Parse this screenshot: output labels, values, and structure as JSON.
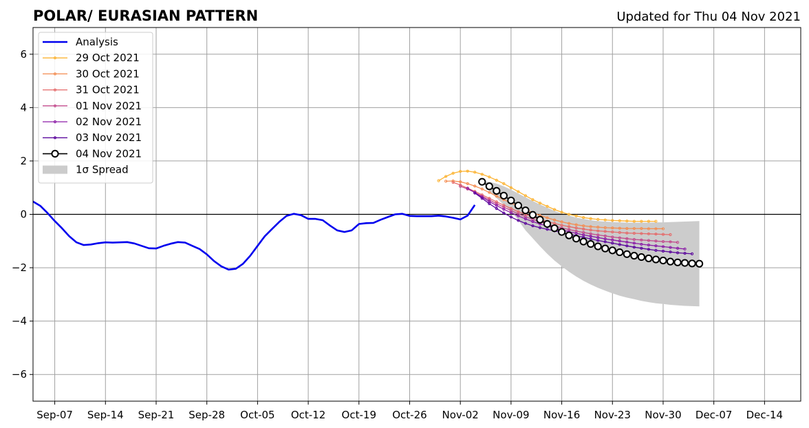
{
  "title_left": "POLAR/ EURASIAN  PATTERN",
  "title_right": "Updated for Thu 04 Nov 2021",
  "chart_data": {
    "type": "line",
    "title": "POLAR/ EURASIAN  PATTERN",
    "xlabel": "",
    "ylabel": "",
    "x_axis": {
      "start": "2021-09-04",
      "end": "2021-12-19",
      "tick_dates": [
        "2021-09-07",
        "2021-09-14",
        "2021-09-21",
        "2021-09-28",
        "2021-10-05",
        "2021-10-12",
        "2021-10-19",
        "2021-10-26",
        "2021-11-02",
        "2021-11-09",
        "2021-11-16",
        "2021-11-23",
        "2021-11-30",
        "2021-12-07",
        "2021-12-14"
      ],
      "tick_labels": [
        "Sep-07",
        "Sep-14",
        "Sep-21",
        "Sep-28",
        "Oct-05",
        "Oct-12",
        "Oct-19",
        "Oct-26",
        "Nov-02",
        "Nov-09",
        "Nov-16",
        "Nov-23",
        "Nov-30",
        "Dec-07",
        "Dec-14"
      ]
    },
    "y_axis": {
      "ylim": [
        -7,
        7
      ],
      "ticks": [
        -6,
        -4,
        -2,
        0,
        2,
        4,
        6
      ],
      "tick_labels": [
        "−6",
        "−4",
        "−2",
        "0",
        "2",
        "4",
        "6"
      ]
    },
    "grid": true,
    "zero_line": true,
    "legend": {
      "position": "top-left",
      "spread_label": "1σ Spread"
    },
    "colors": {
      "analysis": "#0000ee",
      "f1029": "#fcb332",
      "f1030": "#f48c50",
      "f1031": "#e56a6a",
      "f1101": "#c24a8c",
      "f1102": "#8a1aa6",
      "f1103": "#5a049c",
      "f1104": "#000000",
      "spread": "#cccccc",
      "grid": "#a0a0a0"
    },
    "analysis": {
      "name": "Analysis",
      "start_date": "2021-09-04",
      "values": [
        0.48,
        0.32,
        0.05,
        -0.25,
        -0.52,
        -0.82,
        -1.05,
        -1.15,
        -1.13,
        -1.08,
        -1.05,
        -1.06,
        -1.05,
        -1.04,
        -1.09,
        -1.18,
        -1.27,
        -1.28,
        -1.18,
        -1.1,
        -1.04,
        -1.06,
        -1.18,
        -1.3,
        -1.5,
        -1.75,
        -1.95,
        -2.07,
        -2.04,
        -1.85,
        -1.55,
        -1.18,
        -0.82,
        -0.55,
        -0.28,
        -0.06,
        0.02,
        -0.03,
        -0.17,
        -0.17,
        -0.22,
        -0.42,
        -0.6,
        -0.66,
        -0.6,
        -0.36,
        -0.33,
        -0.32,
        -0.2,
        -0.1,
        0.0,
        0.02,
        -0.06,
        -0.07,
        -0.07,
        -0.07,
        -0.05,
        -0.08,
        -0.13,
        -0.19,
        -0.05,
        0.35
      ]
    },
    "series": [
      {
        "name": "29 Oct 2021",
        "start_date": "2021-10-30",
        "values": [
          1.26,
          1.42,
          1.54,
          1.61,
          1.62,
          1.58,
          1.5,
          1.4,
          1.28,
          1.15,
          1.0,
          0.85,
          0.7,
          0.55,
          0.42,
          0.3,
          0.18,
          0.08,
          0.0,
          -0.06,
          -0.12,
          -0.16,
          -0.19,
          -0.21,
          -0.23,
          -0.24,
          -0.25,
          -0.26,
          -0.26,
          -0.26,
          -0.26
        ]
      },
      {
        "name": "30 Oct 2021",
        "start_date": "2021-10-31",
        "values": [
          1.24,
          1.25,
          1.22,
          1.15,
          1.06,
          0.95,
          0.82,
          0.68,
          0.55,
          0.42,
          0.3,
          0.18,
          0.06,
          -0.04,
          -0.13,
          -0.21,
          -0.28,
          -0.34,
          -0.39,
          -0.43,
          -0.46,
          -0.48,
          -0.5,
          -0.51,
          -0.52,
          -0.53,
          -0.53,
          -0.53,
          -0.54,
          -0.54,
          -0.54
        ]
      },
      {
        "name": "31 Oct 2021",
        "start_date": "2021-11-01",
        "values": [
          1.2,
          1.1,
          0.98,
          0.86,
          0.73,
          0.6,
          0.47,
          0.34,
          0.22,
          0.1,
          0.0,
          -0.1,
          -0.19,
          -0.27,
          -0.34,
          -0.41,
          -0.46,
          -0.51,
          -0.55,
          -0.59,
          -0.62,
          -0.64,
          -0.66,
          -0.68,
          -0.7,
          -0.71,
          -0.72,
          -0.73,
          -0.74,
          -0.75,
          -0.76
        ]
      },
      {
        "name": "01 Nov 2021",
        "start_date": "2021-11-02",
        "values": [
          1.05,
          0.95,
          0.82,
          0.68,
          0.54,
          0.4,
          0.27,
          0.14,
          0.02,
          -0.09,
          -0.19,
          -0.28,
          -0.36,
          -0.44,
          -0.51,
          -0.57,
          -0.63,
          -0.68,
          -0.73,
          -0.77,
          -0.81,
          -0.85,
          -0.88,
          -0.91,
          -0.94,
          -0.96,
          -0.98,
          -1.0,
          -1.02,
          -1.03,
          -1.05
        ]
      },
      {
        "name": "02 Nov 2021",
        "start_date": "2021-11-03",
        "values": [
          0.98,
          0.82,
          0.65,
          0.48,
          0.33,
          0.19,
          0.06,
          -0.06,
          -0.17,
          -0.27,
          -0.36,
          -0.44,
          -0.51,
          -0.58,
          -0.65,
          -0.71,
          -0.77,
          -0.82,
          -0.87,
          -0.92,
          -0.96,
          -1.0,
          -1.04,
          -1.08,
          -1.12,
          -1.15,
          -1.18,
          -1.21,
          -1.24,
          -1.27,
          -1.3
        ]
      },
      {
        "name": "03 Nov 2021",
        "start_date": "2021-11-04",
        "values": [
          0.8,
          0.6,
          0.4,
          0.22,
          0.05,
          -0.1,
          -0.23,
          -0.34,
          -0.43,
          -0.5,
          -0.56,
          -0.62,
          -0.68,
          -0.74,
          -0.8,
          -0.86,
          -0.92,
          -0.98,
          -1.03,
          -1.08,
          -1.13,
          -1.18,
          -1.23,
          -1.27,
          -1.31,
          -1.35,
          -1.38,
          -1.41,
          -1.44,
          -1.46,
          -1.48
        ]
      },
      {
        "name": "04 Nov 2021",
        "start_date": "2021-11-05",
        "values": [
          1.22,
          1.05,
          0.88,
          0.7,
          0.52,
          0.33,
          0.15,
          -0.02,
          -0.2,
          -0.36,
          -0.52,
          -0.66,
          -0.79,
          -0.91,
          -1.02,
          -1.11,
          -1.2,
          -1.28,
          -1.35,
          -1.42,
          -1.49,
          -1.55,
          -1.6,
          -1.65,
          -1.69,
          -1.73,
          -1.77,
          -1.8,
          -1.82,
          -1.84,
          -1.85
        ]
      }
    ],
    "spread": {
      "name": "1σ Spread",
      "start_date": "2021-11-05",
      "upper": [
        1.22,
        1.22,
        1.15,
        1.05,
        0.92,
        0.78,
        0.64,
        0.5,
        0.37,
        0.25,
        0.13,
        0.03,
        -0.05,
        -0.12,
        -0.17,
        -0.22,
        -0.25,
        -0.27,
        -0.29,
        -0.3,
        -0.31,
        -0.31,
        -0.31,
        -0.31,
        -0.3,
        -0.3,
        -0.29,
        -0.28,
        -0.27,
        -0.26,
        -0.25
      ],
      "lower": [
        1.22,
        0.88,
        0.61,
        0.35,
        0.12,
        -0.22,
        -0.6,
        -0.9,
        -1.2,
        -1.48,
        -1.73,
        -1.95,
        -2.15,
        -2.33,
        -2.49,
        -2.63,
        -2.75,
        -2.86,
        -2.96,
        -3.05,
        -3.12,
        -3.18,
        -3.24,
        -3.29,
        -3.33,
        -3.36,
        -3.39,
        -3.41,
        -3.43,
        -3.44,
        -3.45
      ]
    }
  }
}
